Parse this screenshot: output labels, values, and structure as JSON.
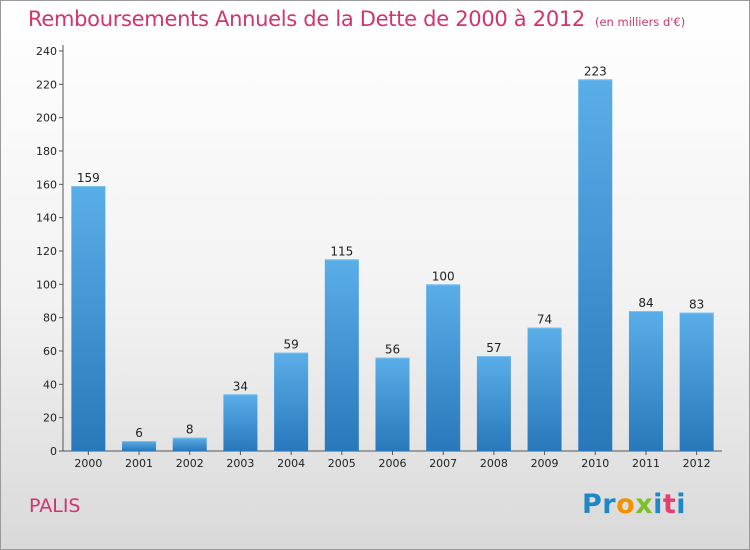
{
  "title": "Remboursements Annuels de la Dette de 2000 à 2012",
  "subtitle": "(en milliers d'€)",
  "commune": "PALIS",
  "logo": {
    "letters": [
      {
        "ch": "P",
        "color": "#1e88c7"
      },
      {
        "ch": "r",
        "color": "#1e88c7"
      },
      {
        "ch": "o",
        "color": "#f39200"
      },
      {
        "ch": "x",
        "color": "#7bbf2a"
      },
      {
        "ch": "i",
        "color": "#1e88c7"
      },
      {
        "ch": "t",
        "color": "#e73c6f"
      },
      {
        "ch": "i",
        "color": "#1e88c7"
      }
    ]
  },
  "colors": {
    "bar_top": "#5aaee8",
    "bar_bottom": "#2878bb",
    "title": "#d1346e"
  },
  "chart_data": {
    "type": "bar",
    "categories": [
      "2000",
      "2001",
      "2002",
      "2003",
      "2004",
      "2005",
      "2006",
      "2007",
      "2008",
      "2009",
      "2010",
      "2011",
      "2012"
    ],
    "values": [
      159,
      6,
      8,
      34,
      59,
      115,
      56,
      100,
      57,
      74,
      223,
      84,
      83
    ],
    "ylim": [
      0,
      240
    ],
    "yticks": [
      0,
      20,
      40,
      60,
      80,
      100,
      120,
      140,
      160,
      180,
      200,
      220,
      240
    ],
    "grid": false,
    "legend": "none"
  }
}
